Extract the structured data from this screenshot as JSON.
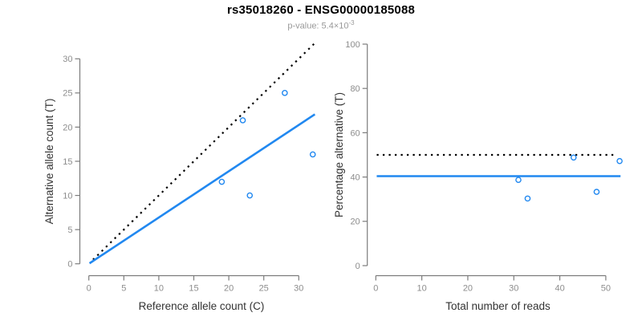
{
  "title": "rs35018260 - ENSG00000185088",
  "subtitle": {
    "prefix": "p-value: 5.4×10",
    "exponent": "-3"
  },
  "colors": {
    "accent_blue": "#2188F0",
    "line_black": "#000000",
    "axis_gray": "#7c7c7c",
    "tick_label_gray": "#8d8d8d",
    "axis_title_color": "#333333",
    "subtitle_gray": "#999999"
  },
  "chart_data": [
    {
      "type": "scatter",
      "name": "allele-count-scatter",
      "xlabel": "Reference allele count (C)",
      "ylabel": "Alternative allele count (T)",
      "xlim": [
        0,
        32.4
      ],
      "ylim": [
        0,
        32.3
      ],
      "xticks": [
        0,
        5,
        10,
        15,
        20,
        25,
        30
      ],
      "yticks": [
        0,
        5,
        10,
        15,
        20,
        25,
        30
      ],
      "points": [
        [
          19,
          12
        ],
        [
          22,
          21
        ],
        [
          23,
          10
        ],
        [
          28,
          25
        ],
        [
          32,
          16
        ]
      ],
      "lines": [
        {
          "name": "identity-line",
          "style": "dotted",
          "color": "#000000",
          "width": 2.2,
          "x1": 0.6,
          "y1": 0.6,
          "x2": 32.2,
          "y2": 32.2
        },
        {
          "name": "fit-line",
          "style": "solid",
          "color": "#2188F0",
          "width": 2.6,
          "x1": 0.1,
          "y1": 0.07,
          "x2": 32.3,
          "y2": 21.87
        }
      ]
    },
    {
      "type": "scatter",
      "name": "percentage-reads-scatter",
      "xlabel": "Total number of reads",
      "ylabel": "Percentage alternative (T)",
      "xlim": [
        0,
        53.6
      ],
      "ylim": [
        0,
        100
      ],
      "xticks": [
        0,
        10,
        20,
        30,
        40,
        50
      ],
      "yticks": [
        0,
        20,
        40,
        60,
        80,
        100
      ],
      "points": [
        [
          31,
          38.7
        ],
        [
          33,
          30.3
        ],
        [
          43,
          48.8
        ],
        [
          48,
          33.3
        ],
        [
          53,
          47.2
        ]
      ],
      "lines": [
        {
          "name": "expected-50pct-line",
          "style": "dotted",
          "color": "#000000",
          "width": 2.2,
          "x1": 0.2,
          "y1": 50,
          "x2": 52.3,
          "y2": 50
        },
        {
          "name": "mean-percentage-line",
          "style": "solid",
          "color": "#2188F0",
          "width": 2.6,
          "x1": 0.2,
          "y1": 40.4,
          "x2": 53.2,
          "y2": 40.4
        }
      ]
    }
  ]
}
